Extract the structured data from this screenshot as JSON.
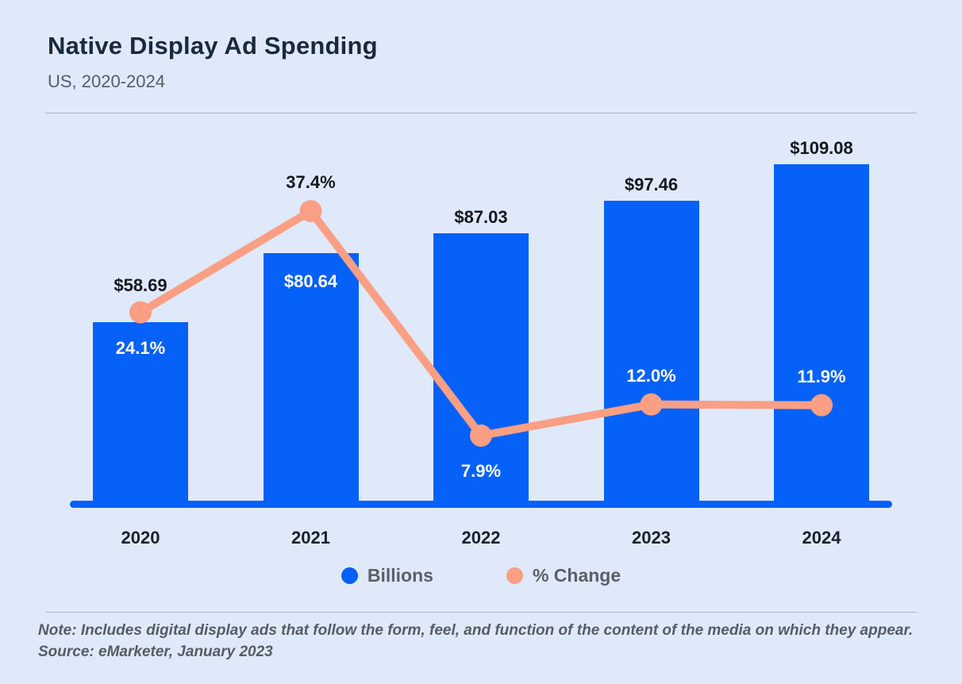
{
  "header": {
    "title": "Native Display Ad Spending",
    "subtitle": "US, 2020-2024"
  },
  "legend": {
    "items": [
      {
        "label": "Billions",
        "color": "#0561f8"
      },
      {
        "label": "% Change",
        "color": "#fa9e84"
      }
    ]
  },
  "footer": {
    "note": "Note: Includes digital display ads that follow the form, feel, and function of the content of the media on which they appear.",
    "source": "Source: eMarketer, January 2023"
  },
  "colors": {
    "background": "#e0e9fa",
    "bar_blue": "#0561f8",
    "line_salmon": "#fa9e84",
    "label_dark": "#13181e",
    "label_light": "#ffffff",
    "title": "#182a3d",
    "muted_text": "#565c66"
  },
  "chart_data": {
    "type": "bar+line combo",
    "title": "Native Display Ad Spending",
    "subtitle": "US, 2020-2024",
    "categories": [
      "2020",
      "2021",
      "2022",
      "2023",
      "2024"
    ],
    "series": [
      {
        "name": "Billions",
        "type": "bar",
        "unit": "USD billions",
        "color": "#0561f8",
        "values": [
          58.69,
          80.64,
          87.03,
          97.46,
          109.08
        ],
        "labels": [
          "$58.69",
          "$80.64",
          "$87.03",
          "$97.46",
          "$109.08"
        ],
        "label_placement": [
          "above",
          "inside",
          "above",
          "above",
          "above"
        ]
      },
      {
        "name": "% Change",
        "type": "line",
        "unit": "percent",
        "color": "#fa9e84",
        "values": [
          24.1,
          37.4,
          7.9,
          12.0,
          11.9
        ],
        "labels": [
          "24.1%",
          "37.4%",
          "7.9%",
          "12.0%",
          "11.9%"
        ],
        "label_placement": [
          "below",
          "above",
          "below",
          "above",
          "above"
        ],
        "label_on_bar": [
          true,
          false,
          true,
          true,
          true
        ]
      }
    ],
    "xlabel": "",
    "ylabel": "",
    "grid": false,
    "legend_position": "bottom-center",
    "axes": {
      "y_axis_shown": false,
      "x_baseline_shown": true
    }
  }
}
